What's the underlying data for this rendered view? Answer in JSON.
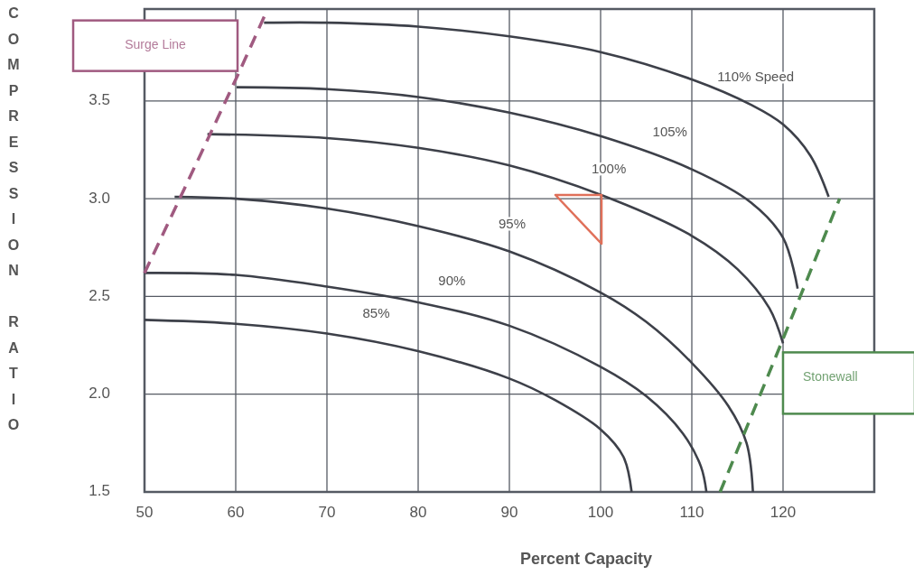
{
  "chart_data": {
    "type": "line",
    "xlabel": "Percent Capacity",
    "ylabel": "COMPRESSION RATIO",
    "xlim": [
      50,
      130
    ],
    "ylim": [
      1.5,
      3.97
    ],
    "xticks": [
      50,
      60,
      70,
      80,
      90,
      100,
      110,
      120
    ],
    "yticks": [
      1.5,
      {
        "value": 2,
        "label": "2.0"
      },
      2.5,
      {
        "value": 3,
        "label": "3.0"
      },
      3.5
    ],
    "grid": true,
    "series": [
      {
        "color": "#3d4049",
        "x": [
          63.1,
          70,
          80,
          90,
          100,
          110,
          116.5,
          120,
          123,
          125
        ],
        "values": [
          3.9,
          3.9,
          3.88,
          3.83,
          3.75,
          3.61,
          3.48,
          3.38,
          3.22,
          3.01
        ]
      },
      {
        "color": "#3d4049",
        "x": [
          60.1,
          70,
          80,
          90,
          100,
          110,
          116.5,
          120,
          121.6
        ],
        "values": [
          3.57,
          3.56,
          3.52,
          3.44,
          3.32,
          3.15,
          2.98,
          2.8,
          2.54
        ]
      },
      {
        "color": "#3d4049",
        "x": [
          56.9,
          70,
          80,
          90,
          100,
          110,
          115,
          118.5,
          120
        ],
        "values": [
          3.33,
          3.31,
          3.26,
          3.17,
          3.02,
          2.81,
          2.64,
          2.44,
          2.26
        ]
      },
      {
        "color": "#3d4049",
        "x": [
          53.3,
          60,
          70,
          80,
          90,
          100,
          105,
          110,
          114,
          116,
          116.7
        ],
        "values": [
          3.01,
          3.0,
          2.95,
          2.86,
          2.73,
          2.52,
          2.37,
          2.16,
          1.94,
          1.75,
          1.5
        ]
      },
      {
        "color": "#3d4049",
        "x": [
          50,
          60,
          70,
          80,
          90,
          100,
          105,
          109,
          111,
          111.6
        ],
        "values": [
          2.62,
          2.61,
          2.55,
          2.47,
          2.35,
          2.14,
          1.99,
          1.8,
          1.63,
          1.5
        ]
      },
      {
        "color": "#3d4049",
        "x": [
          50,
          60,
          70,
          80,
          90,
          95,
          100,
          102.5,
          103.4
        ],
        "values": [
          2.38,
          2.36,
          2.31,
          2.22,
          2.08,
          1.97,
          1.82,
          1.68,
          1.5
        ]
      },
      {
        "name": "Surge Line",
        "color": "#a05a80",
        "line_style": "dashed",
        "x": [
          50,
          60.2,
          63.3
        ],
        "values": [
          2.62,
          3.63,
          3.95
        ]
      },
      {
        "name": "Stonewall",
        "color": "#4e8a4e",
        "line_style": "dashed",
        "x": [
          113.1,
          119.8,
          126.2
        ],
        "values": [
          1.5,
          2.26,
          3.0
        ]
      }
    ],
    "annotations": [
      {
        "text": "110% Speed",
        "x": 117,
        "y": 3.47
      },
      {
        "text": "105%",
        "x": 107.6,
        "y": 3.19
      },
      {
        "text": "100%",
        "x": 100.9,
        "y": 3.0
      },
      {
        "text": "95%",
        "x": 90.3,
        "y": 2.72
      },
      {
        "text": "90%",
        "x": 83.7,
        "y": 2.43
      },
      {
        "text": "85%",
        "x": 75.4,
        "y": 2.26
      }
    ]
  }
}
